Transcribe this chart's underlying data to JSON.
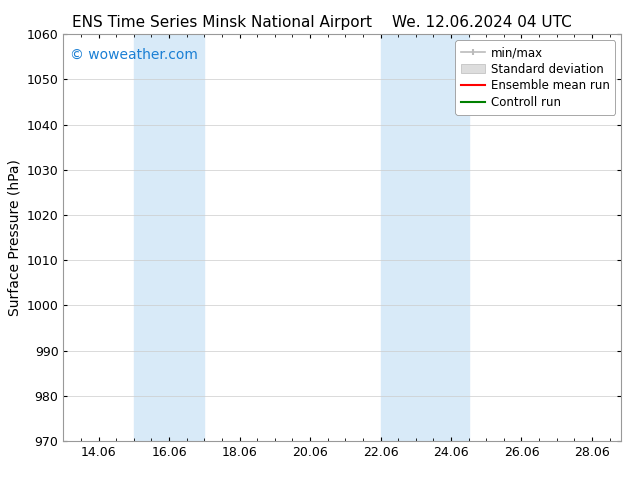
{
  "title_left": "ENS Time Series Minsk National Airport",
  "title_right": "We. 12.06.2024 04 UTC",
  "ylabel": "Surface Pressure (hPa)",
  "xlim": [
    13.0,
    28.833
  ],
  "ylim": [
    970,
    1060
  ],
  "yticks": [
    970,
    980,
    990,
    1000,
    1010,
    1020,
    1030,
    1040,
    1050,
    1060
  ],
  "xtick_labels": [
    "14.06",
    "16.06",
    "18.06",
    "20.06",
    "22.06",
    "24.06",
    "26.06",
    "28.06"
  ],
  "xtick_positions": [
    14.0,
    16.0,
    18.0,
    20.0,
    22.0,
    24.0,
    26.0,
    28.0
  ],
  "shaded_bands": [
    {
      "x_start": 15.0,
      "x_end": 17.0
    },
    {
      "x_start": 22.0,
      "x_end": 24.5
    }
  ],
  "shaded_color": "#d8eaf8",
  "watermark_text": "© woweather.com",
  "watermark_color": "#1a7fd4",
  "bg_color": "#ffffff",
  "grid_color": "#cccccc",
  "spine_color": "#999999",
  "tick_color": "#555555",
  "title_fontsize": 11,
  "ylabel_fontsize": 10,
  "tick_fontsize": 9,
  "watermark_fontsize": 10,
  "legend_fontsize": 8.5
}
